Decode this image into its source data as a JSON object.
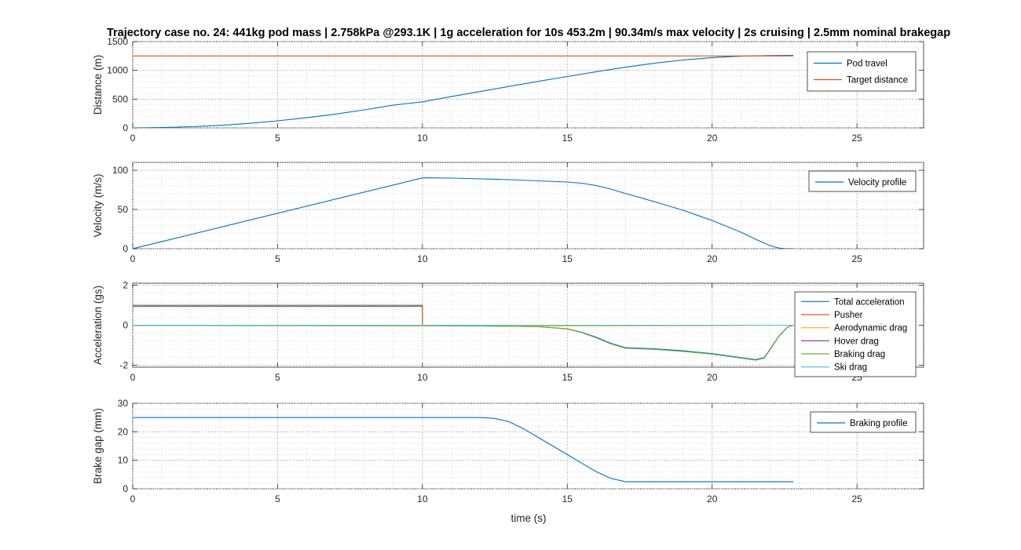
{
  "figure": {
    "title": "Trajectory case no. 24: 441kg pod mass | 2.758kPa @293.1K | 1g acceleration for 10s 453.2m | 90.34m/s max velocity | 2s cruising | 2.5mm nominal brakegap",
    "xlabel": "time (s)"
  },
  "colors": {
    "blue": "#0072BD",
    "orange": "#D95319",
    "yellow": "#EDB120",
    "purple": "#7E2F8E",
    "green": "#77AC30",
    "cyan": "#4DBEEE"
  },
  "chart_data": [
    {
      "type": "line",
      "ylabel": "Distance (m)",
      "xlim": [
        0,
        27.3
      ],
      "ylim": [
        0,
        1500
      ],
      "xticks": [
        "0",
        "5",
        "10",
        "15",
        "20",
        "25"
      ],
      "yticks": [
        "0",
        "500",
        "1000",
        "1500"
      ],
      "grid": true,
      "legend_position": "top-right",
      "series": [
        {
          "name": "Pod travel",
          "color": "blue",
          "x": [
            0,
            1,
            2,
            3,
            4,
            5,
            6,
            7,
            8,
            9,
            10,
            11,
            12,
            13,
            14,
            15,
            16,
            17,
            18,
            19,
            20,
            21,
            22,
            22.5,
            22.8
          ],
          "y": [
            0,
            5,
            20,
            44,
            78,
            123,
            176,
            240,
            314,
            397,
            453,
            544,
            633,
            721,
            808,
            893,
            976,
            1054,
            1123,
            1180,
            1222,
            1247,
            1257,
            1259,
            1260
          ]
        },
        {
          "name": "Target distance",
          "color": "orange",
          "x": [
            0,
            22.8
          ],
          "y": [
            1250,
            1250
          ]
        }
      ]
    },
    {
      "type": "line",
      "ylabel": "Velocity (m/s)",
      "xlim": [
        0,
        27.3
      ],
      "ylim": [
        0,
        110
      ],
      "xticks": [
        "0",
        "5",
        "10",
        "15",
        "20",
        "25"
      ],
      "yticks": [
        "0",
        "50",
        "100"
      ],
      "grid": true,
      "legend_position": "top-right",
      "series": [
        {
          "name": "Velocity profile",
          "color": "blue",
          "x": [
            0,
            10,
            10.1,
            11,
            12,
            13,
            14,
            15,
            15.5,
            16,
            16.5,
            17,
            18,
            19,
            20,
            21,
            21.5,
            22,
            22.3,
            22.5,
            22.8
          ],
          "y": [
            0,
            90.34,
            90.4,
            90,
            89,
            88,
            86.5,
            85,
            83.5,
            80.5,
            76,
            70.5,
            60,
            49,
            36,
            21,
            12,
            4,
            0.8,
            0.2,
            0
          ]
        }
      ]
    },
    {
      "type": "line",
      "ylabel": "Acceleration (gs)",
      "xlim": [
        0,
        27.3
      ],
      "ylim": [
        -2.1,
        2.1
      ],
      "xticks": [
        "0",
        "5",
        "10",
        "15",
        "20",
        "25"
      ],
      "yticks": [
        "-2",
        "0",
        "2"
      ],
      "grid": true,
      "legend_position": "top-right",
      "series": [
        {
          "name": "Total acceleration",
          "color": "blue",
          "x": [
            0,
            10,
            10,
            11,
            12,
            13,
            14,
            15,
            15.5,
            16,
            16.5,
            17,
            18,
            19,
            20,
            21,
            21.5,
            21.8,
            22,
            22.3,
            22.6,
            22.8
          ],
          "y": [
            0.95,
            0.95,
            -0.02,
            -0.03,
            -0.04,
            -0.05,
            -0.07,
            -0.18,
            -0.35,
            -0.6,
            -0.9,
            -1.12,
            -1.18,
            -1.28,
            -1.42,
            -1.62,
            -1.72,
            -1.62,
            -1.2,
            -0.55,
            -0.1,
            0
          ]
        },
        {
          "name": "Pusher",
          "color": "orange",
          "x": [
            0,
            10,
            10,
            22.8
          ],
          "y": [
            1,
            1,
            0,
            0
          ]
        },
        {
          "name": "Aerodynamic drag",
          "color": "yellow",
          "x": [
            0,
            10,
            15,
            20,
            22.8
          ],
          "y": [
            -0.01,
            -0.04,
            -0.035,
            -0.02,
            0
          ]
        },
        {
          "name": "Hover drag",
          "color": "purple",
          "x": [
            18.5,
            22.8
          ],
          "y": [
            0,
            0
          ]
        },
        {
          "name": "Braking drag",
          "color": "green",
          "x": [
            0,
            6,
            6,
            10,
            11,
            12,
            13,
            14,
            15,
            15.5,
            16,
            16.5,
            17,
            18,
            19,
            20,
            21,
            21.5,
            21.8,
            22,
            22.3,
            22.6,
            22.8
          ],
          "y": [
            -0.02,
            -0.02,
            -0.02,
            -0.02,
            -0.03,
            -0.04,
            -0.05,
            -0.07,
            -0.19,
            -0.37,
            -0.63,
            -0.93,
            -1.15,
            -1.21,
            -1.31,
            -1.45,
            -1.65,
            -1.75,
            -1.65,
            -1.23,
            -0.57,
            -0.11,
            0
          ]
        },
        {
          "name": "Ski drag",
          "color": "cyan",
          "x": [
            0,
            22.8
          ],
          "y": [
            0,
            0
          ]
        }
      ]
    },
    {
      "type": "line",
      "ylabel": "Brake gap (mm)",
      "xlim": [
        0,
        27.3
      ],
      "ylim": [
        0,
        30
      ],
      "xticks": [
        "0",
        "5",
        "10",
        "15",
        "20",
        "25"
      ],
      "yticks": [
        "0",
        "10",
        "20",
        "30"
      ],
      "grid": true,
      "legend_position": "top-right",
      "series": [
        {
          "name": "Braking profile",
          "color": "blue",
          "x": [
            0,
            12,
            12.5,
            13,
            13.5,
            14,
            14.5,
            15,
            15.5,
            16,
            16.5,
            17,
            22.8
          ],
          "y": [
            25,
            25,
            24.7,
            23.5,
            21,
            18,
            15,
            12,
            9,
            6,
            3.7,
            2.5,
            2.5
          ]
        }
      ]
    }
  ]
}
